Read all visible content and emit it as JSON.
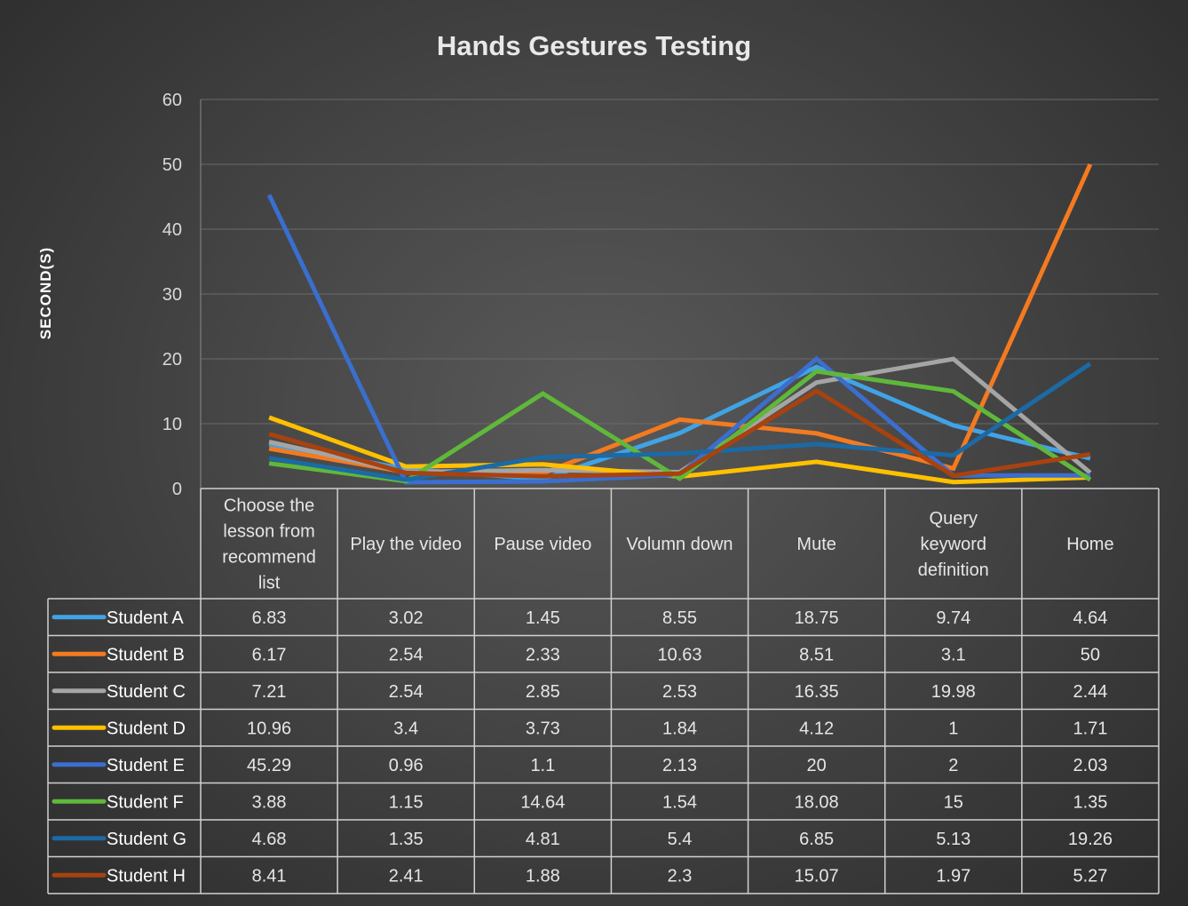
{
  "chart_data": {
    "type": "line",
    "title": "Hands Gestures Testing",
    "ylabel": "SECOND(S)",
    "xlabel": "",
    "ylim": [
      0,
      60
    ],
    "yticks": [
      0,
      10,
      20,
      30,
      40,
      50,
      60
    ],
    "grid": true,
    "legend": "data-table",
    "categories": [
      "Choose the lesson from recommend list",
      "Play the video",
      "Pause video",
      "Volumn down",
      "Mute",
      "Query keyword definition",
      "Home"
    ],
    "series": [
      {
        "name": "Student A",
        "color": "#41a3e6",
        "values": [
          6.83,
          3.02,
          1.45,
          8.55,
          18.75,
          9.74,
          4.64
        ]
      },
      {
        "name": "Student B",
        "color": "#f47a20",
        "values": [
          6.17,
          2.54,
          2.33,
          10.63,
          8.51,
          3.1,
          50
        ]
      },
      {
        "name": "Student C",
        "color": "#a5a5a5",
        "values": [
          7.21,
          2.54,
          2.85,
          2.53,
          16.35,
          19.98,
          2.44
        ]
      },
      {
        "name": "Student D",
        "color": "#ffc000",
        "values": [
          10.96,
          3.4,
          3.73,
          1.84,
          4.12,
          1,
          1.71
        ]
      },
      {
        "name": "Student E",
        "color": "#3a6fcf",
        "values": [
          45.29,
          0.96,
          1.1,
          2.13,
          20,
          2,
          2.03
        ]
      },
      {
        "name": "Student F",
        "color": "#5fb83a",
        "values": [
          3.88,
          1.15,
          14.64,
          1.54,
          18.08,
          15,
          1.35
        ]
      },
      {
        "name": "Student G",
        "color": "#1b6aa5",
        "values": [
          4.68,
          1.35,
          4.81,
          5.4,
          6.85,
          5.13,
          19.26
        ]
      },
      {
        "name": "Student H",
        "color": "#a8420e",
        "values": [
          8.41,
          2.41,
          1.88,
          2.3,
          15.07,
          1.97,
          5.27
        ]
      }
    ]
  }
}
